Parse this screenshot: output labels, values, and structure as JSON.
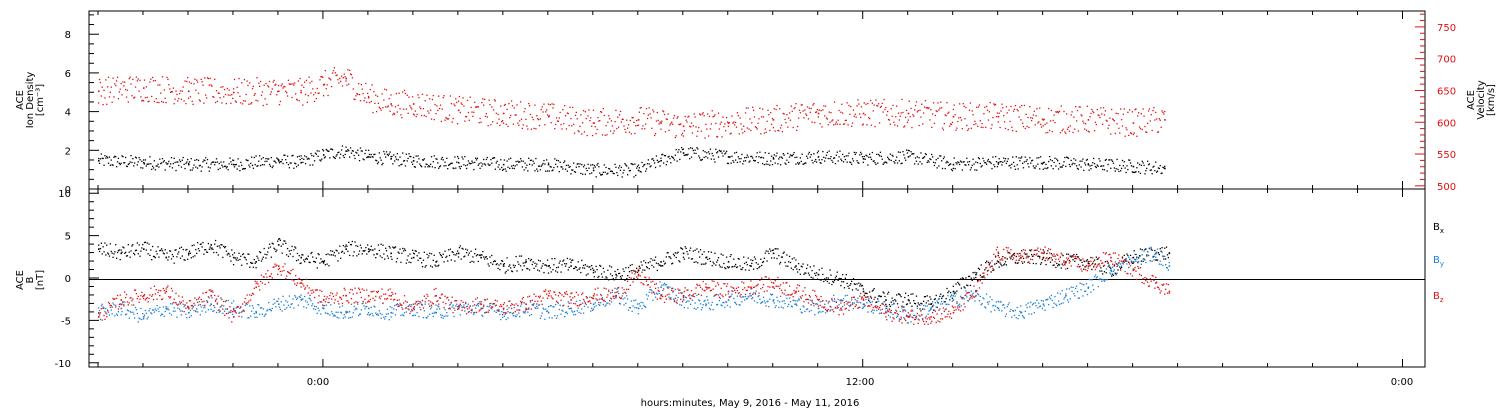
{
  "figure": {
    "xaxis_label": "hours:minutes,  May  9, 2016 - May 11, 2016",
    "xtick_labels": [
      "0:00",
      "12:00",
      "0:00"
    ]
  },
  "colors": {
    "black": "#000000",
    "red": "#e01010",
    "blue": "#1a7fd4"
  },
  "chart_data": [
    {
      "type": "scatter",
      "panel": "plasma",
      "ylabel_left": [
        "ACE",
        "Ion Density",
        "[cm⁻³]"
      ],
      "ylabel_right": [
        "ACE",
        "Velocity",
        "[km/s]"
      ],
      "yticks_left": [
        "0",
        "2",
        "4",
        "6",
        "8"
      ],
      "yticks_right": [
        "500",
        "550",
        "600",
        "650",
        "700",
        "750"
      ],
      "ylim_left": [
        0,
        9.2
      ],
      "ylim_right": [
        495,
        775
      ],
      "x_unit": "hours since May 9, 2016 0:00 (left edge -5.2, right edge 24.5)",
      "xlim": [
        -5.2,
        24.5
      ],
      "grid": false,
      "series": [
        {
          "name": "Ion Density",
          "color": "black",
          "axis": "left",
          "x": [
            -5.0,
            -4.0,
            -3.0,
            -2.0,
            -1.0,
            -0.5,
            0.0,
            0.5,
            1.0,
            1.5,
            2.0,
            3.0,
            4.0,
            5.0,
            6.0,
            7.0,
            7.5,
            8.0,
            9.0,
            10.0,
            11.0,
            12.0,
            13.0,
            14.0,
            15.0,
            16.0,
            17.0,
            18.0,
            18.7
          ],
          "y": [
            1.5,
            1.4,
            1.3,
            1.3,
            1.5,
            1.4,
            1.8,
            2.0,
            1.7,
            1.6,
            1.5,
            1.4,
            1.3,
            1.3,
            1.0,
            1.0,
            1.5,
            1.9,
            1.7,
            1.6,
            1.7,
            1.6,
            1.7,
            1.3,
            1.4,
            1.4,
            1.3,
            1.2,
            1.1
          ]
        },
        {
          "name": "Velocity",
          "color": "red",
          "axis": "right",
          "x": [
            -5.0,
            -4.0,
            -3.0,
            -2.0,
            -1.0,
            -0.5,
            0.0,
            0.5,
            1.0,
            1.5,
            2.0,
            3.0,
            4.0,
            5.0,
            6.0,
            7.0,
            7.5,
            8.0,
            9.0,
            10.0,
            11.0,
            12.0,
            13.0,
            14.0,
            15.0,
            16.0,
            17.0,
            18.0,
            18.7
          ],
          "y": [
            650,
            655,
            650,
            648,
            650,
            648,
            660,
            670,
            640,
            630,
            630,
            620,
            615,
            610,
            600,
            605,
            600,
            595,
            600,
            605,
            615,
            615,
            615,
            610,
            610,
            605,
            605,
            600,
            605
          ]
        }
      ]
    },
    {
      "type": "scatter",
      "panel": "magnetic",
      "ylabel_left": [
        "ACE",
        "B",
        "[nT]"
      ],
      "yticks_left": [
        "-10",
        "-5",
        "0",
        "5",
        "10"
      ],
      "ylim_left": [
        -10.5,
        10.5
      ],
      "xlim": [
        -5.2,
        24.5
      ],
      "zero_line": true,
      "grid": false,
      "legend_placement": "right",
      "series": [
        {
          "name": "Bx",
          "color": "black",
          "x": [
            -5.0,
            -4.5,
            -4.0,
            -3.5,
            -3.0,
            -2.5,
            -2.0,
            -1.5,
            -1.0,
            -0.5,
            0.0,
            0.5,
            1.0,
            1.5,
            2.0,
            2.5,
            3.0,
            3.5,
            4.0,
            4.5,
            5.0,
            5.5,
            6.0,
            6.5,
            7.0,
            7.5,
            8.0,
            8.5,
            9.0,
            9.5,
            10.0,
            10.5,
            11.0,
            11.5,
            12.0,
            12.5,
            13.0,
            13.5,
            14.0,
            14.5,
            15.0,
            15.5,
            16.0,
            16.5,
            17.0,
            17.5,
            18.0,
            18.5,
            18.8
          ],
          "y": [
            3.5,
            3.0,
            3.5,
            2.5,
            3.0,
            4.0,
            2.5,
            2.0,
            4.0,
            2.5,
            2.0,
            3.5,
            3.5,
            3.0,
            2.5,
            2.0,
            3.0,
            2.5,
            1.5,
            2.0,
            1.5,
            1.5,
            1.0,
            0.5,
            1.0,
            2.0,
            3.0,
            2.5,
            2.0,
            1.5,
            3.0,
            1.5,
            0.5,
            0.0,
            -1.5,
            -2.5,
            -2.5,
            -3.0,
            -1.5,
            0.5,
            2.0,
            2.5,
            2.5,
            2.0,
            2.0,
            1.0,
            2.5,
            3.0,
            3.0
          ]
        },
        {
          "name": "By",
          "color": "blue",
          "x": [
            -5.0,
            -4.5,
            -4.0,
            -3.5,
            -3.0,
            -2.5,
            -2.0,
            -1.5,
            -1.0,
            -0.5,
            0.0,
            0.5,
            1.0,
            1.5,
            2.0,
            2.5,
            3.0,
            3.5,
            4.0,
            4.5,
            5.0,
            5.5,
            6.0,
            6.5,
            7.0,
            7.5,
            8.0,
            8.5,
            9.0,
            9.5,
            10.0,
            10.5,
            11.0,
            11.5,
            12.0,
            12.5,
            13.0,
            13.5,
            14.0,
            14.5,
            15.0,
            15.5,
            16.0,
            16.5,
            17.0,
            17.5,
            18.0,
            18.5,
            18.8
          ],
          "y": [
            -4.0,
            -3.5,
            -4.5,
            -3.5,
            -4.0,
            -3.0,
            -3.5,
            -4.0,
            -3.0,
            -2.5,
            -3.5,
            -4.0,
            -3.5,
            -4.0,
            -3.5,
            -4.0,
            -3.5,
            -3.5,
            -4.0,
            -3.5,
            -4.0,
            -3.5,
            -3.0,
            -2.0,
            -3.5,
            -1.0,
            -2.5,
            -3.0,
            -2.5,
            -2.0,
            -2.5,
            -3.0,
            -3.5,
            -2.5,
            -3.0,
            -3.5,
            -4.5,
            -3.5,
            -2.5,
            -2.0,
            -3.5,
            -4.0,
            -3.0,
            -2.0,
            -1.0,
            1.0,
            2.0,
            3.0,
            1.5
          ]
        },
        {
          "name": "Bz",
          "color": "red",
          "x": [
            -5.0,
            -4.5,
            -4.0,
            -3.5,
            -3.0,
            -2.5,
            -2.0,
            -1.5,
            -1.0,
            -0.5,
            0.0,
            0.5,
            1.0,
            1.5,
            2.0,
            2.5,
            3.0,
            3.5,
            4.0,
            4.5,
            5.0,
            5.5,
            6.0,
            6.5,
            7.0,
            7.5,
            8.0,
            8.5,
            9.0,
            9.5,
            10.0,
            10.5,
            11.0,
            11.5,
            12.0,
            12.5,
            13.0,
            13.5,
            14.0,
            14.5,
            15.0,
            15.5,
            16.0,
            16.5,
            17.0,
            17.5,
            18.0,
            18.5,
            18.8
          ],
          "y": [
            -4.5,
            -2.5,
            -2.0,
            -1.5,
            -3.5,
            -2.0,
            -4.5,
            -1.0,
            1.5,
            -0.5,
            -2.5,
            -2.0,
            -2.0,
            -2.0,
            -3.5,
            -2.0,
            -3.5,
            -3.0,
            -3.5,
            -3.0,
            -2.0,
            -2.5,
            -2.0,
            -2.0,
            0.5,
            -2.0,
            -2.0,
            -1.0,
            -1.5,
            -1.0,
            -0.5,
            -1.5,
            -2.5,
            -3.5,
            -2.5,
            -4.0,
            -4.5,
            -4.5,
            -4.0,
            -1.5,
            3.0,
            2.5,
            3.0,
            2.0,
            1.5,
            2.5,
            1.0,
            -0.5,
            -1.5
          ]
        }
      ],
      "legend": [
        "B",
        "B",
        "B"
      ],
      "legend_subscripts": [
        "x",
        "y",
        "z"
      ]
    }
  ]
}
